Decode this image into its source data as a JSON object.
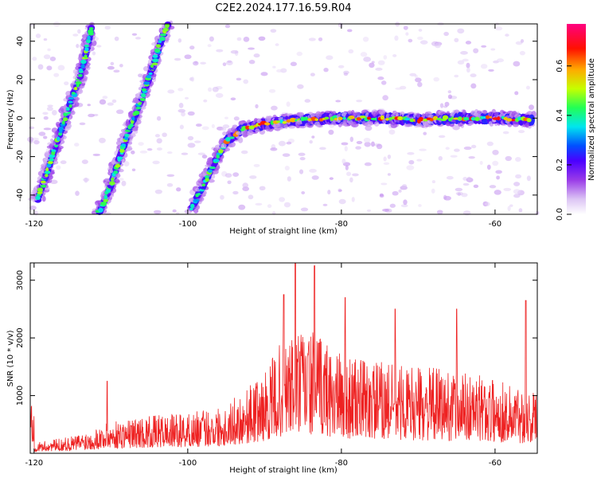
{
  "title": "C2E2.2024.177.16.59.R04",
  "chart_data": [
    {
      "type": "heatmap",
      "xlabel": "Height of straight line (km)",
      "ylabel": "Frequency (Hz)",
      "xlim": [
        -120.5,
        -54.5
      ],
      "ylim": [
        -50,
        49
      ],
      "xticks": [
        -120,
        -100,
        -80,
        -60
      ],
      "yticks": [
        -40,
        -20,
        0,
        20,
        40
      ],
      "colorbar": {
        "label": "Normalized spectral amplitude",
        "range": [
          0.0,
          0.77
        ],
        "ticks": [
          0.0,
          0.2,
          0.4,
          0.6
        ],
        "colormap": "rainbow (white-purple-blue-cyan-green-yellow-red-magenta)"
      },
      "features": [
        {
          "points": [
            [
              -119.5,
              -42
            ],
            [
              -118.5,
              -30
            ],
            [
              -117,
              -12
            ],
            [
              -115.5,
              5
            ],
            [
              -114,
              22
            ],
            [
              -113,
              38
            ],
            [
              -112.5,
              48
            ]
          ]
        },
        {
          "points": [
            [
              -111.5,
              -49
            ],
            [
              -110,
              -35
            ],
            [
              -109,
              -22
            ],
            [
              -107.5,
              -5
            ],
            [
              -106,
              10
            ],
            [
              -104.5,
              27
            ],
            [
              -103.5,
              40
            ],
            [
              -102.5,
              49
            ]
          ]
        },
        {
          "points": [
            [
              -99.5,
              -47
            ],
            [
              -98,
              -35
            ],
            [
              -96.5,
              -23
            ],
            [
              -95,
              -12
            ],
            [
              -93,
              -6
            ],
            [
              -90,
              -3
            ],
            [
              -85,
              -1
            ],
            [
              -80,
              0
            ],
            [
              -75,
              0
            ],
            [
              -70,
              -1
            ],
            [
              -65,
              0
            ],
            [
              -60,
              0
            ],
            [
              -55,
              -1
            ]
          ]
        }
      ]
    },
    {
      "type": "line",
      "xlabel": "Height of straight line (km)",
      "ylabel": "SNR (10 * v/v)",
      "xlim": [
        -120.5,
        -54.5
      ],
      "ylim": [
        0,
        3300
      ],
      "xticks": [
        -120,
        -100,
        -80,
        -60
      ],
      "yticks": [
        1000,
        2000,
        3000
      ],
      "color": "#ee2222",
      "envelope": {
        "x": [
          -120,
          -115,
          -110,
          -105,
          -100,
          -95,
          -90,
          -88,
          -85,
          -82,
          -80,
          -75,
          -70,
          -65,
          -60,
          -55
        ],
        "y": [
          180,
          300,
          550,
          650,
          700,
          850,
          1400,
          1900,
          2200,
          2000,
          1700,
          1600,
          1500,
          1450,
          1300,
          1100
        ]
      },
      "peaks": [
        {
          "x": -86.0,
          "y": 3300
        },
        {
          "x": -83.5,
          "y": 3250
        },
        {
          "x": -87.5,
          "y": 2750
        },
        {
          "x": -79.5,
          "y": 2700
        },
        {
          "x": -73.0,
          "y": 2500
        },
        {
          "x": -65.0,
          "y": 2500
        },
        {
          "x": -56.0,
          "y": 2650
        },
        {
          "x": -110.5,
          "y": 1250
        }
      ]
    }
  ]
}
